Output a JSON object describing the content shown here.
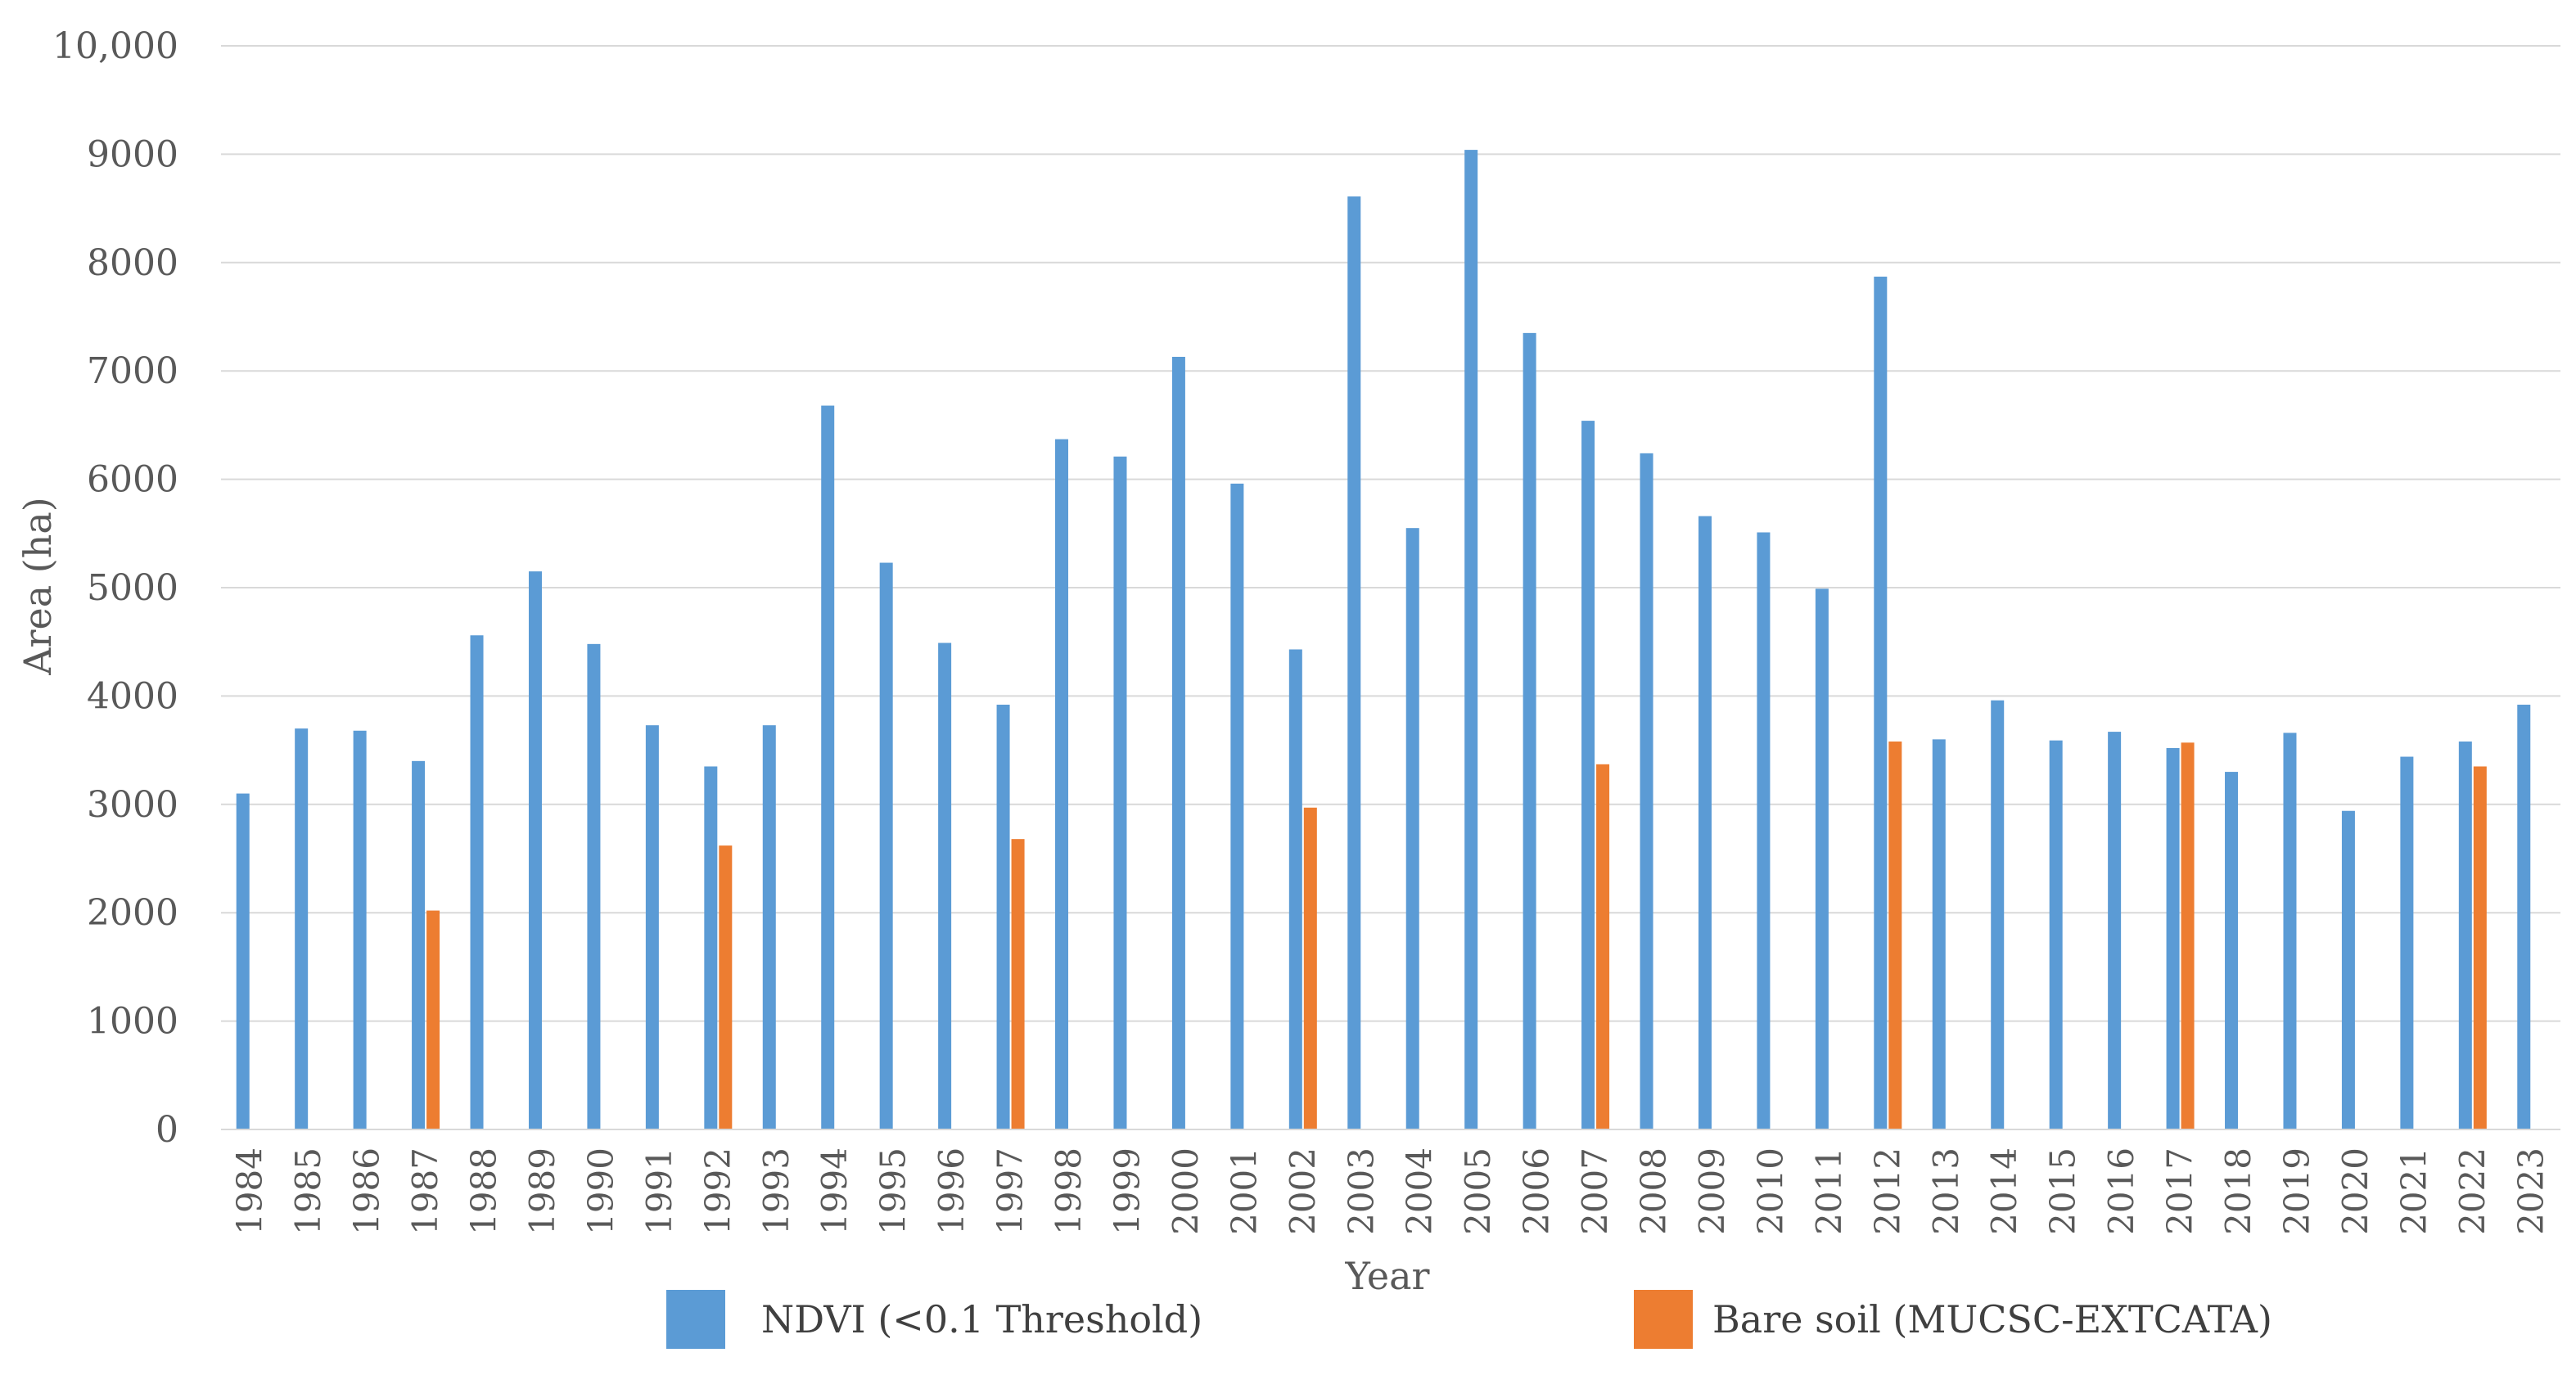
{
  "chart_data": {
    "type": "bar",
    "title": "",
    "xlabel": "Year",
    "ylabel": "Area (ha)",
    "ylim": [
      0,
      10000
    ],
    "yticks": [
      {
        "value": 0,
        "label": "0"
      },
      {
        "value": 1000,
        "label": "1000"
      },
      {
        "value": 2000,
        "label": "2000"
      },
      {
        "value": 3000,
        "label": "3000"
      },
      {
        "value": 4000,
        "label": "4000"
      },
      {
        "value": 5000,
        "label": "5000"
      },
      {
        "value": 6000,
        "label": "6000"
      },
      {
        "value": 7000,
        "label": "7000"
      },
      {
        "value": 8000,
        "label": "8000"
      },
      {
        "value": 9000,
        "label": "9000"
      },
      {
        "value": 10000,
        "label": "10,000"
      }
    ],
    "grid": true,
    "legend_position": "bottom",
    "categories": [
      "1984",
      "1985",
      "1986",
      "1987",
      "1988",
      "1989",
      "1990",
      "1991",
      "1992",
      "1993",
      "1994",
      "1995",
      "1996",
      "1997",
      "1998",
      "1999",
      "2000",
      "2001",
      "2002",
      "2003",
      "2004",
      "2005",
      "2006",
      "2007",
      "2008",
      "2009",
      "2010",
      "2011",
      "2012",
      "2013",
      "2014",
      "2015",
      "2016",
      "2017",
      "2018",
      "2019",
      "2020",
      "2021",
      "2022",
      "2023"
    ],
    "series": [
      {
        "name": "NDVI (<0.1 Threshold)",
        "color": "#5b9bd5",
        "values": [
          3100,
          3700,
          3680,
          3400,
          4560,
          5150,
          4480,
          3730,
          3350,
          3730,
          6680,
          5230,
          4490,
          3920,
          6370,
          6210,
          7130,
          5960,
          4430,
          8610,
          5550,
          9040,
          7350,
          6540,
          6240,
          5660,
          5510,
          4990,
          7870,
          3600,
          3960,
          3590,
          3670,
          3520,
          3300,
          3660,
          2940,
          3440,
          3580,
          3920
        ]
      },
      {
        "name": "Bare soil (MUCSC-EXTCATA)",
        "color": "#ed7d31",
        "values": [
          null,
          null,
          null,
          2020,
          null,
          null,
          null,
          null,
          2620,
          null,
          null,
          null,
          null,
          2680,
          null,
          null,
          null,
          null,
          2970,
          null,
          null,
          null,
          null,
          3370,
          null,
          null,
          null,
          null,
          3580,
          null,
          null,
          null,
          null,
          3570,
          null,
          null,
          null,
          null,
          3350,
          null
        ]
      }
    ]
  }
}
